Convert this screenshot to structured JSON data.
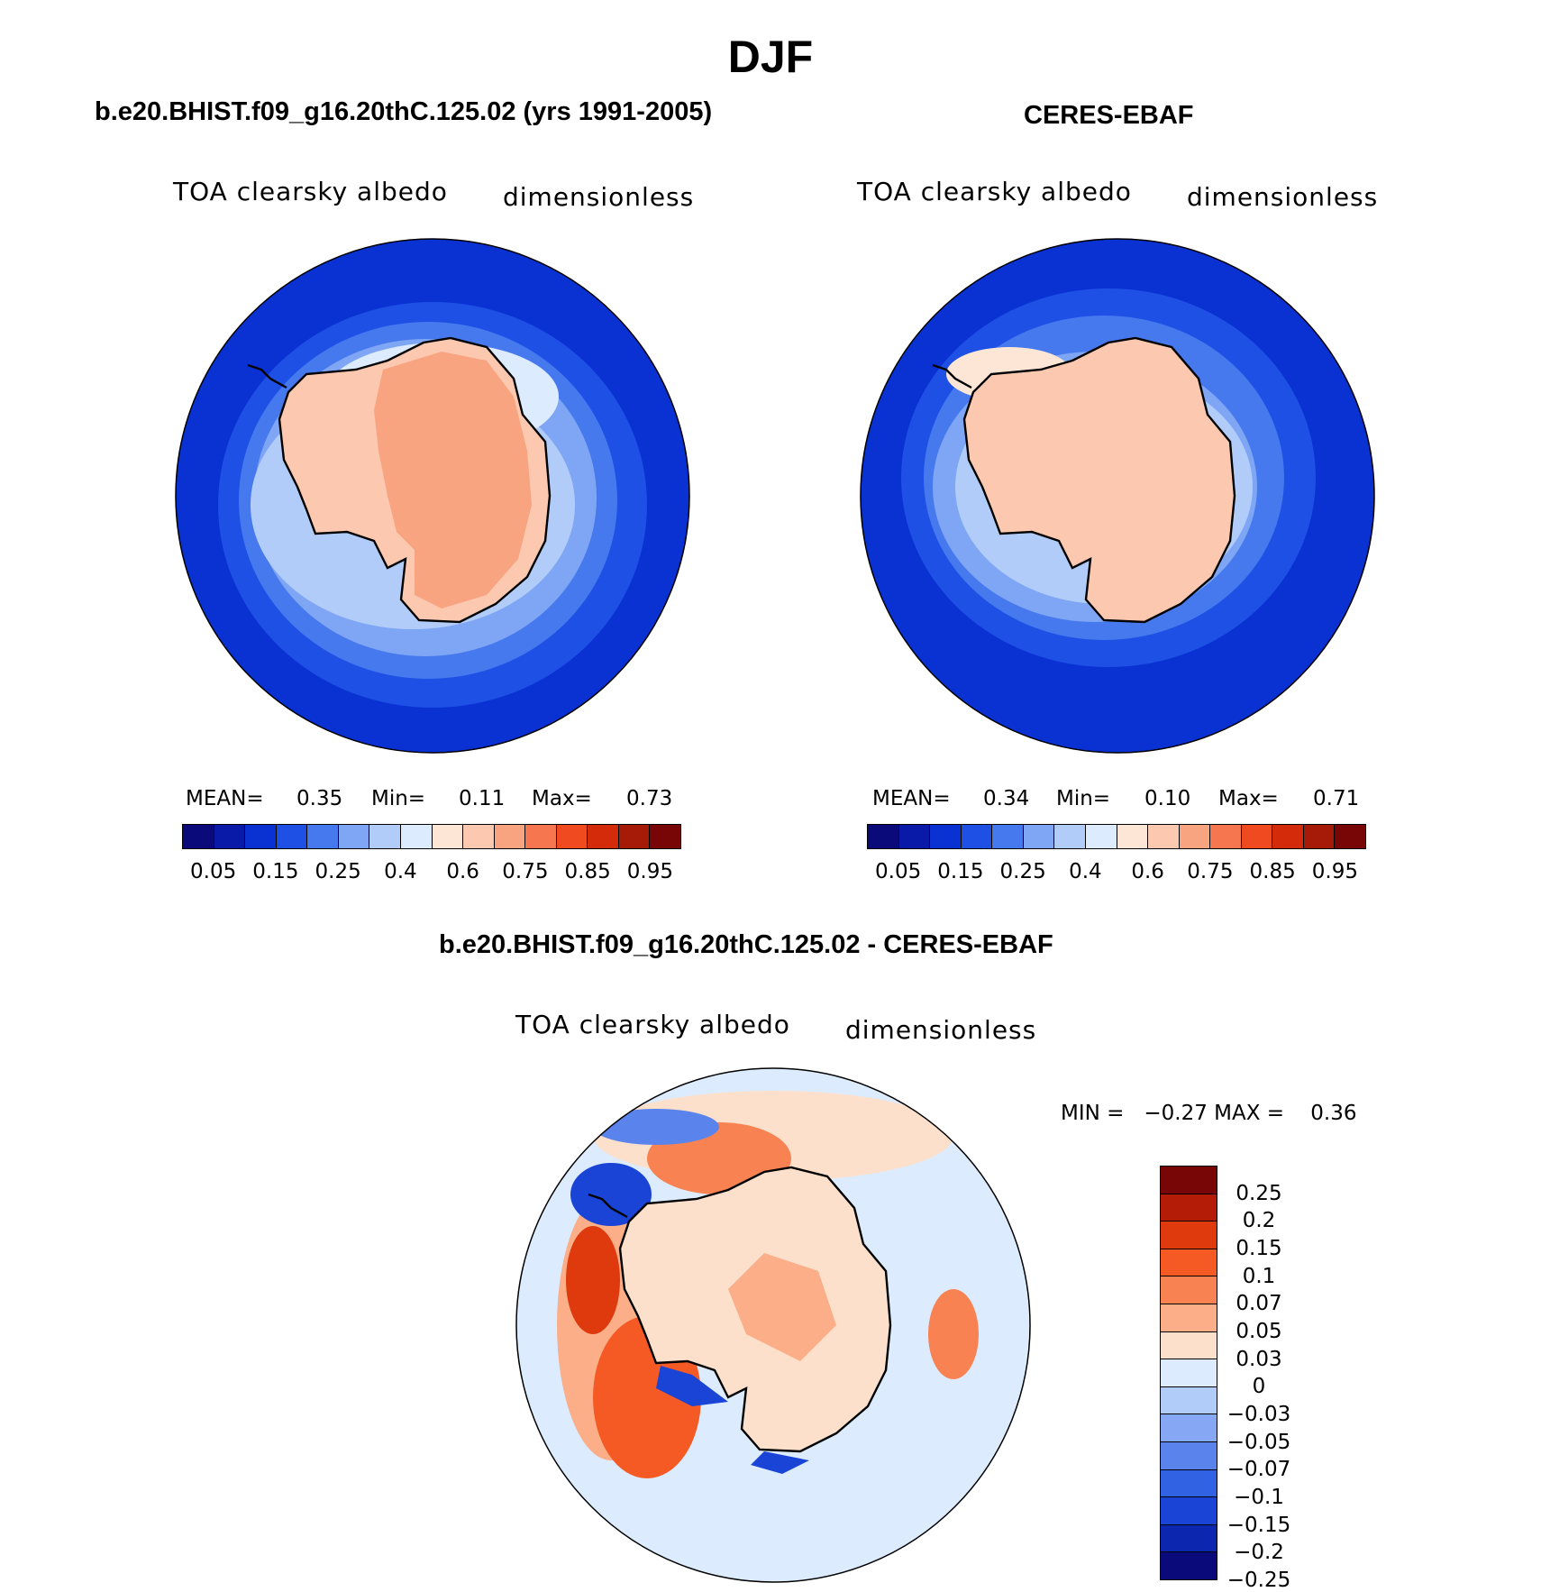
{
  "figure": {
    "title": "DJF"
  },
  "panels": [
    {
      "id": "model",
      "header": "b.e20.BHIST.f09_g16.20thC.125.02 (yrs 1991-2005)",
      "variable": "TOA clearsky albedo",
      "units": "dimensionless",
      "stats": {
        "mean_label": "MEAN=",
        "mean": "0.35",
        "min_label": "Min=",
        "min": "0.11",
        "max_label": "Max=",
        "max": "0.73"
      }
    },
    {
      "id": "obs",
      "header": "CERES-EBAF",
      "variable": "TOA clearsky albedo",
      "units": "dimensionless",
      "stats": {
        "mean_label": "MEAN=",
        "mean": "0.34",
        "min_label": "Min=",
        "min": "0.10",
        "max_label": "Max=",
        "max": "0.71"
      }
    },
    {
      "id": "diff",
      "header": "b.e20.BHIST.f09_g16.20thC.125.02 - CERES-EBAF",
      "variable": "TOA clearsky albedo",
      "units": "dimensionless",
      "stats_line": "MIN =   −0.27 MAX =    0.36"
    }
  ],
  "colorbars": {
    "abs_colors": [
      "#0a0a7a",
      "#0a1aa8",
      "#0a32d2",
      "#1e50e6",
      "#4678ee",
      "#7ea6f4",
      "#b2ccfa",
      "#dcecfe",
      "#fee6d6",
      "#fcc8b0",
      "#f9a480",
      "#f67650",
      "#f04a20",
      "#d42c0a",
      "#a61a08",
      "#780606"
    ],
    "abs_ticks": [
      "0.05",
      "0.15",
      "0.25",
      "0.4",
      "0.6",
      "0.75",
      "0.85",
      "0.95"
    ],
    "diff_colors": [
      "#780606",
      "#b41c08",
      "#de3a0e",
      "#f65a24",
      "#f98252",
      "#fbae88",
      "#fde0cc",
      "#dcecfe",
      "#b2ccfa",
      "#86a8f4",
      "#5a84ec",
      "#3262e4",
      "#1a44d6",
      "#0c26b0",
      "#0a0a7a"
    ],
    "diff_ticks": [
      "0.25",
      "0.2",
      "0.15",
      "0.1",
      "0.07",
      "0.05",
      "0.03",
      "0",
      "−0.03",
      "−0.05",
      "−0.07",
      "−0.1",
      "−0.15",
      "−0.2",
      "−0.25"
    ]
  }
}
